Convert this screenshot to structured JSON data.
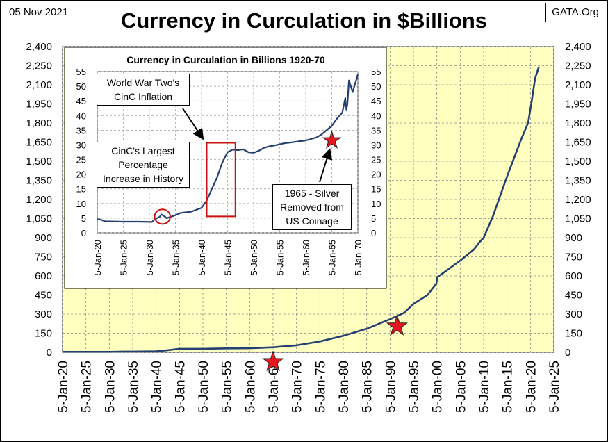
{
  "header": {
    "date": "05 Nov 2021",
    "source": "GATA.Org"
  },
  "colors": {
    "series": "#243F72",
    "plot_bg": "#FFFFC0",
    "star": "#E8161E",
    "highlight": "#CC1111"
  },
  "chart_data": [
    {
      "type": "line",
      "title": "Currency in Curculation in $Billions",
      "ylim": [
        0,
        2400
      ],
      "y_ticks": [
        "0",
        "150",
        "300",
        "450",
        "600",
        "750",
        "900",
        "1,050",
        "1,200",
        "1,350",
        "1,500",
        "1,650",
        "1,800",
        "1,950",
        "2,100",
        "2,250",
        "2,400"
      ],
      "x_ticks": [
        "5-Jan-20",
        "5-Jan-25",
        "5-Jan-30",
        "5-Jan-35",
        "5-Jan-40",
        "5-Jan-45",
        "5-Jan-50",
        "5-Jan-55",
        "5-Jan-60",
        "5-Jan-65",
        "5-Jan-70",
        "5-Jan-75",
        "5-Jan-80",
        "5-Jan-85",
        "5-Jan-90",
        "5-Jan-95",
        "5-Jan-00",
        "5-Jan-05",
        "5-Jan-10",
        "5-Jan-15",
        "5-Jan-20",
        "5-Jan-25"
      ],
      "xlim": [
        1920,
        2025
      ],
      "grid": true,
      "legend": "none",
      "series": [
        {
          "x": [
            1920,
            1925,
            1930,
            1933,
            1935,
            1940,
            1942,
            1945,
            1950,
            1955,
            1960,
            1965,
            1970,
            1975,
            1980,
            1985,
            1990,
            1993,
            1995,
            1998,
            1999.9,
            2000.1,
            2002,
            2005,
            2008,
            2009,
            2010,
            2012,
            2015,
            2018,
            2019.5,
            2020.3,
            2021,
            2021.8
          ],
          "y": [
            4,
            4,
            4,
            6,
            6,
            8,
            15,
            28,
            28,
            31,
            32,
            40,
            55,
            85,
            130,
            185,
            260,
            310,
            380,
            450,
            540,
            590,
            640,
            720,
            810,
            860,
            900,
            1070,
            1380,
            1670,
            1800,
            1980,
            2150,
            2240
          ]
        }
      ],
      "markers": [
        {
          "shape": "star",
          "x": 1965,
          "y": -75
        },
        {
          "shape": "star",
          "x": 1991.5,
          "y": 205
        }
      ]
    },
    {
      "type": "line",
      "title": "Currency in Curculation in Billions 1920-70",
      "ylim": [
        0,
        55
      ],
      "y_ticks": [
        "0",
        "5",
        "10",
        "15",
        "20",
        "25",
        "30",
        "35",
        "40",
        "45",
        "50",
        "55"
      ],
      "x_ticks": [
        "5-Jan-20",
        "5-Jan-25",
        "5-Jan-30",
        "5-Jan-35",
        "5-Jan-40",
        "5-Jan-45",
        "5-Jan-50",
        "5-Jan-55",
        "5-Jan-60",
        "5-Jan-65",
        "5-Jan-70"
      ],
      "xlim": [
        1920,
        1970
      ],
      "grid": true,
      "legend": "none",
      "series": [
        {
          "x": [
            1920,
            1920.5,
            1921.5,
            1925,
            1928,
            1930.5,
            1931,
            1932,
            1932.3,
            1933,
            1933.3,
            1934,
            1935,
            1936,
            1938,
            1940,
            1941,
            1942,
            1943,
            1944,
            1945,
            1946,
            1947,
            1948,
            1949,
            1950,
            1951,
            1952,
            1953,
            1954,
            1955,
            1956,
            1957,
            1958,
            1959,
            1960,
            1961,
            1962,
            1963,
            1964,
            1965,
            1966,
            1967,
            1967.6,
            1967.8,
            1968,
            1968.3,
            1969,
            1970
          ],
          "y": [
            4.6,
            4.6,
            3.9,
            3.8,
            3.8,
            3.7,
            4.6,
            5.5,
            6.3,
            5.5,
            5.0,
            5.4,
            6.0,
            6.8,
            7.2,
            8.5,
            11,
            15,
            19,
            24,
            27.5,
            28.4,
            28.2,
            28.5,
            27.5,
            27.3,
            28,
            29,
            29.5,
            29.8,
            30.2,
            30.6,
            30.8,
            31,
            31.3,
            31.5,
            32,
            32.5,
            33.5,
            35,
            36.5,
            39,
            41,
            46,
            42,
            44,
            52,
            48,
            54
          ]
        }
      ],
      "markers": [
        {
          "shape": "star",
          "x": 1965,
          "y": 31.5
        },
        {
          "shape": "ellipse",
          "x": 1932.5,
          "y": 5.5,
          "rx": 1.5,
          "ry": 2.5
        },
        {
          "shape": "rect",
          "x0": 1941,
          "x1": 1946.5,
          "y0": 5.6,
          "y1": 30.7
        }
      ],
      "annotations": [
        "World War Two's CinC Inflation",
        "CinC's Largest Percentage Increase in History",
        "1965 - Silver Removed from US Coinage"
      ]
    }
  ]
}
